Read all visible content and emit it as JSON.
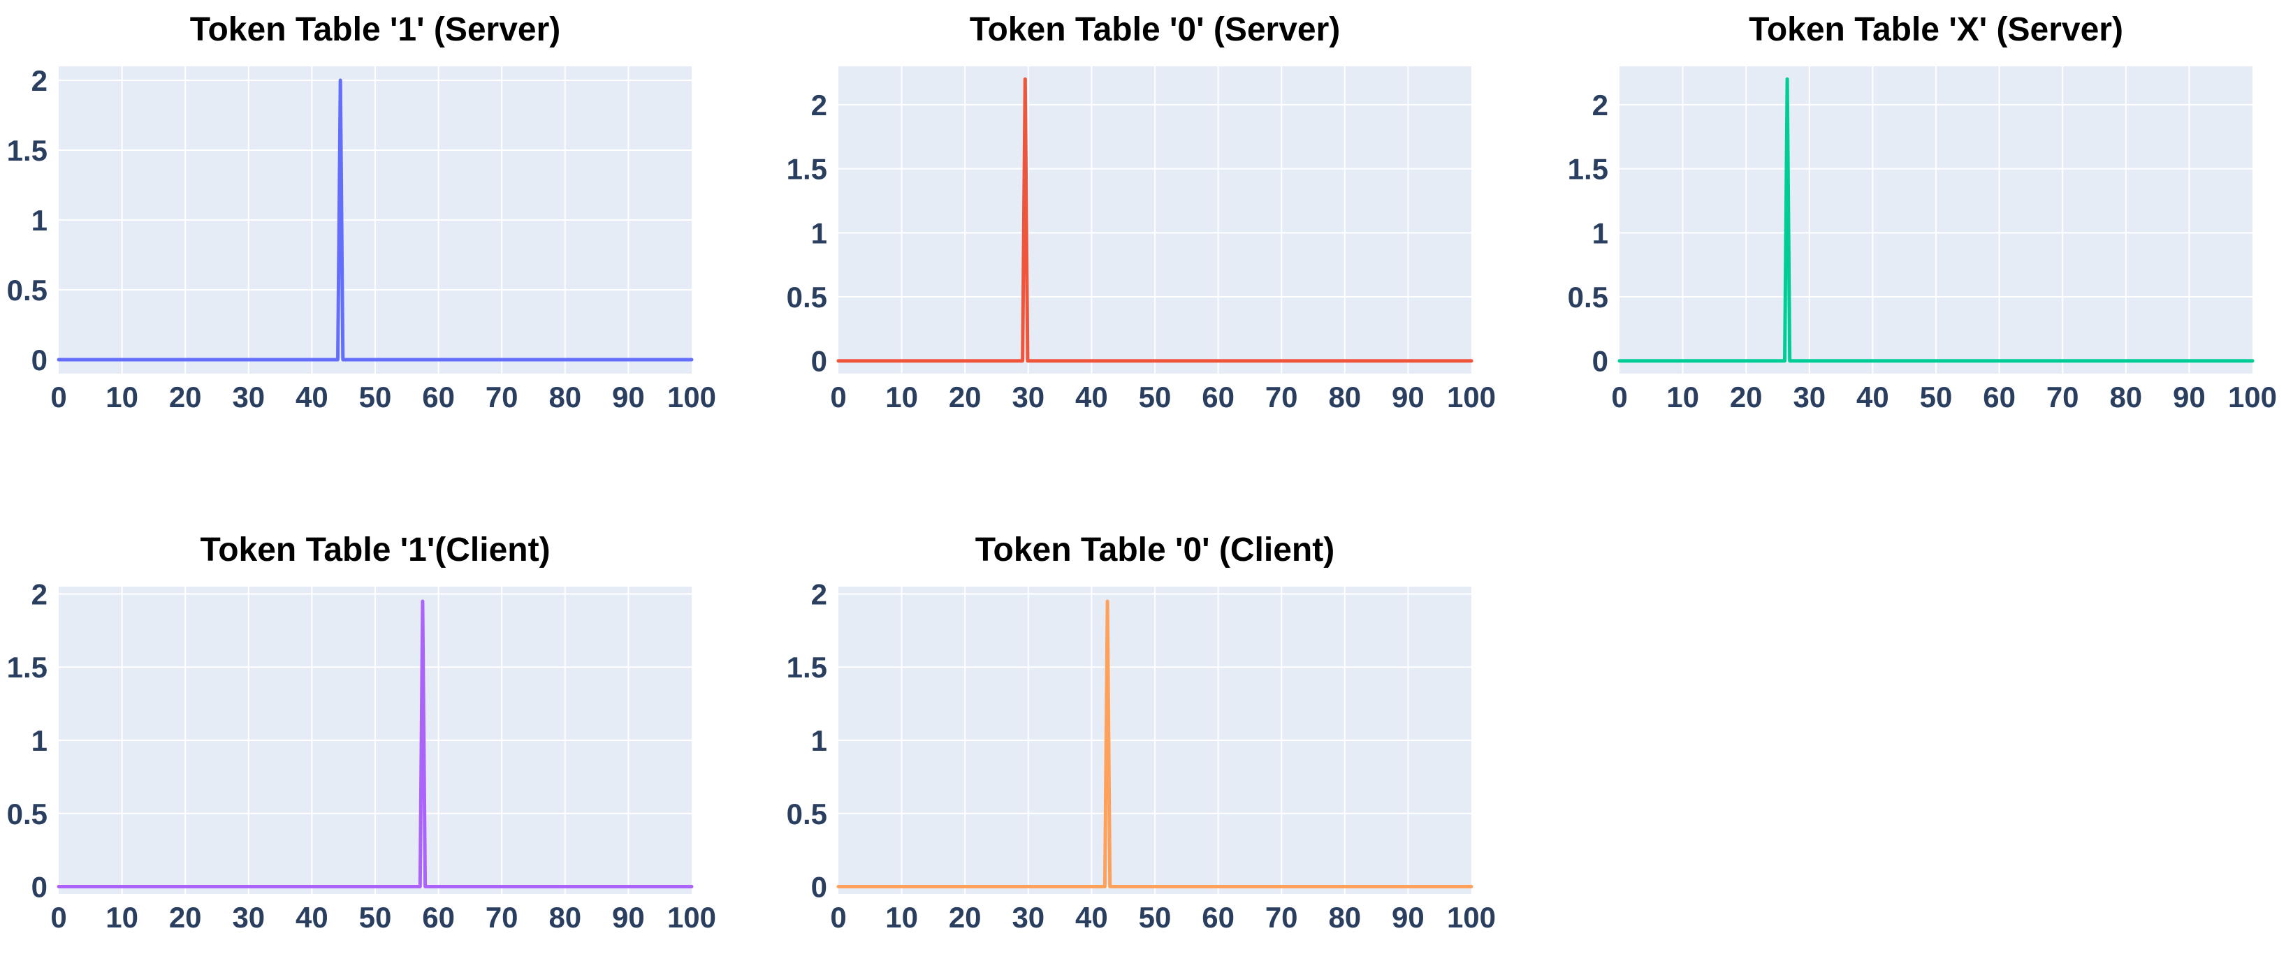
{
  "chart_data": [
    {
      "type": "line",
      "title": "Token Table '1' (Server)",
      "xlabel": "",
      "ylabel": "",
      "xlim": [
        0,
        100
      ],
      "ylim": [
        -0.1,
        2.1
      ],
      "xticks": [
        "0",
        "10",
        "20",
        "30",
        "40",
        "50",
        "60",
        "70",
        "80",
        "90",
        "100"
      ],
      "yticks": [
        "0",
        "0.5",
        "1",
        "1.5",
        "2"
      ],
      "grid": true,
      "legend": "none",
      "color": "#636efa",
      "series": [
        {
          "x": [
            0,
            44.1,
            44.5,
            44.9,
            100
          ],
          "y": [
            0,
            0,
            2.0,
            0,
            0
          ]
        }
      ]
    },
    {
      "type": "line",
      "title": "Token Table '0' (Server)",
      "xlabel": "",
      "ylabel": "",
      "xlim": [
        0,
        100
      ],
      "ylim": [
        -0.1,
        2.3
      ],
      "xticks": [
        "0",
        "10",
        "20",
        "30",
        "40",
        "50",
        "60",
        "70",
        "80",
        "90",
        "100"
      ],
      "yticks": [
        "0",
        "0.5",
        "1",
        "1.5",
        "2"
      ],
      "grid": true,
      "legend": "none",
      "color": "#ef553b",
      "series": [
        {
          "x": [
            0,
            29.1,
            29.5,
            29.9,
            100
          ],
          "y": [
            0,
            0,
            2.2,
            0,
            0
          ]
        }
      ]
    },
    {
      "type": "line",
      "title": "Token Table 'X' (Server)",
      "xlabel": "",
      "ylabel": "",
      "xlim": [
        0,
        100
      ],
      "ylim": [
        -0.1,
        2.3
      ],
      "xticks": [
        "0",
        "10",
        "20",
        "30",
        "40",
        "50",
        "60",
        "70",
        "80",
        "90",
        "100"
      ],
      "yticks": [
        "0",
        "0.5",
        "1",
        "1.5",
        "2"
      ],
      "grid": true,
      "legend": "none",
      "color": "#00cc96",
      "series": [
        {
          "x": [
            0,
            26.1,
            26.5,
            26.9,
            100
          ],
          "y": [
            0,
            0,
            2.2,
            0,
            0
          ]
        }
      ]
    },
    {
      "type": "line",
      "title": "Token Table '1'(Client)",
      "xlabel": "",
      "ylabel": "",
      "xlim": [
        0,
        100
      ],
      "ylim": [
        -0.05,
        2.05
      ],
      "xticks": [
        "0",
        "10",
        "20",
        "30",
        "40",
        "50",
        "60",
        "70",
        "80",
        "90",
        "100"
      ],
      "yticks": [
        "0",
        "0.5",
        "1",
        "1.5",
        "2"
      ],
      "grid": true,
      "legend": "none",
      "color": "#ab63fa",
      "series": [
        {
          "x": [
            0,
            57.1,
            57.5,
            57.9,
            100
          ],
          "y": [
            0,
            0,
            1.95,
            0,
            0
          ]
        }
      ]
    },
    {
      "type": "line",
      "title": "Token Table '0' (Client)",
      "xlabel": "",
      "ylabel": "",
      "xlim": [
        0,
        100
      ],
      "ylim": [
        -0.05,
        2.05
      ],
      "xticks": [
        "0",
        "10",
        "20",
        "30",
        "40",
        "50",
        "60",
        "70",
        "80",
        "90",
        "100"
      ],
      "yticks": [
        "0",
        "0.5",
        "1",
        "1.5",
        "2"
      ],
      "grid": true,
      "legend": "none",
      "color": "#ffa15a",
      "series": [
        {
          "x": [
            0,
            42.1,
            42.5,
            42.9,
            100
          ],
          "y": [
            0,
            0,
            1.95,
            0,
            0
          ]
        }
      ]
    }
  ]
}
